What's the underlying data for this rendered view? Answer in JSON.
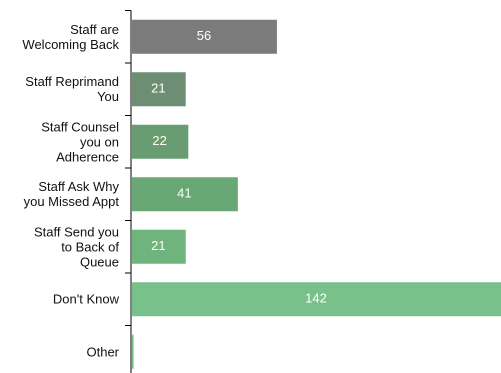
{
  "chart_data": {
    "type": "hbar",
    "categories": [
      "Staff are\nWelcoming Back",
      "Staff Reprimand\nYou",
      "Staff Counsel\nyou on\nAdherence",
      "Staff Ask Why\nyou Missed Appt",
      "Staff Send you\nto Back of\nQueue",
      "Don't Know",
      "Other"
    ],
    "values": [
      56,
      21,
      22,
      41,
      21,
      142,
      1
    ],
    "colors": [
      "#7b7b7b",
      "#6d8e72",
      "#699d71",
      "#69a875",
      "#6fb47c",
      "#78c18a",
      "#78c18a"
    ]
  }
}
